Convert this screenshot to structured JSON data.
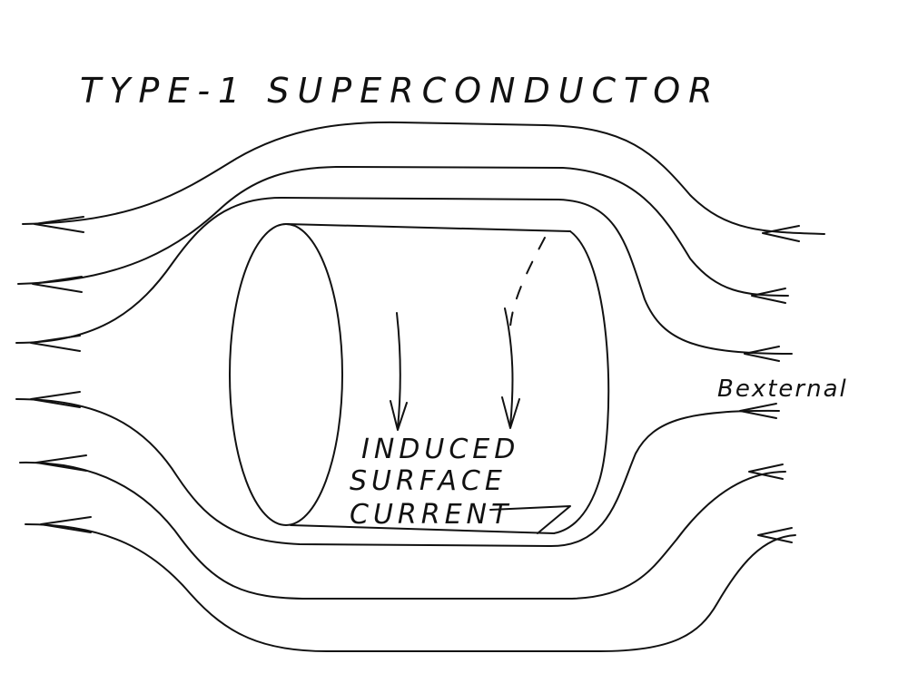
{
  "title": "TYPE-1 SUPERCONDUCTOR",
  "field_label": "Bexternal",
  "current_label_lines": [
    "INDUCED",
    "SURFACE",
    "CURRENT"
  ],
  "colors": {
    "ink": "#111111",
    "paper": "#ffffff"
  },
  "icons": [
    "arrow-left-icon",
    "arrow-down-icon"
  ]
}
